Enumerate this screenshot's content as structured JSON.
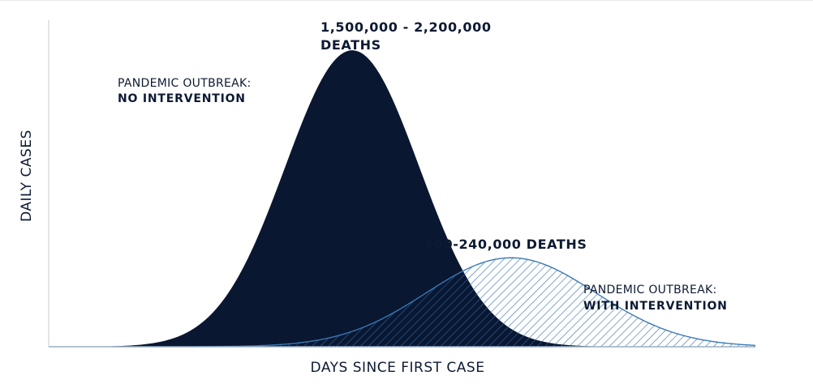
{
  "chart_data": {
    "type": "area",
    "xlabel": "DAYS SINCE FIRST CASE",
    "ylabel": "DAILY CASES",
    "grid": false,
    "x_ticks_shown": false,
    "y_ticks_shown": false,
    "series": [
      {
        "name": "PANDEMIC OUTBREAK: NO INTERVENTION",
        "fill": "solid",
        "color": "#0a1731",
        "peak_x": 0.43,
        "peak_y": 1.0,
        "spread": 0.095
      },
      {
        "name": "PANDEMIC OUTBREAK: WITH INTERVENTION",
        "fill": "hatched",
        "color": "#3a78b5",
        "peak_x": 0.655,
        "peak_y": 0.3,
        "spread": 0.12
      }
    ],
    "annotations": {
      "no_intervention": {
        "line1": "PANDEMIC OUTBREAK:",
        "line2": "NO INTERVENTION"
      },
      "peak1": {
        "line1": "1,500,000 - 2,200,000",
        "line2": "DEATHS"
      },
      "peak2": {
        "line1": "100-240,000 DEATHS"
      },
      "with_intervention": {
        "line1": "PANDEMIC OUTBREAK:",
        "line2": "WITH INTERVENTION"
      }
    }
  }
}
